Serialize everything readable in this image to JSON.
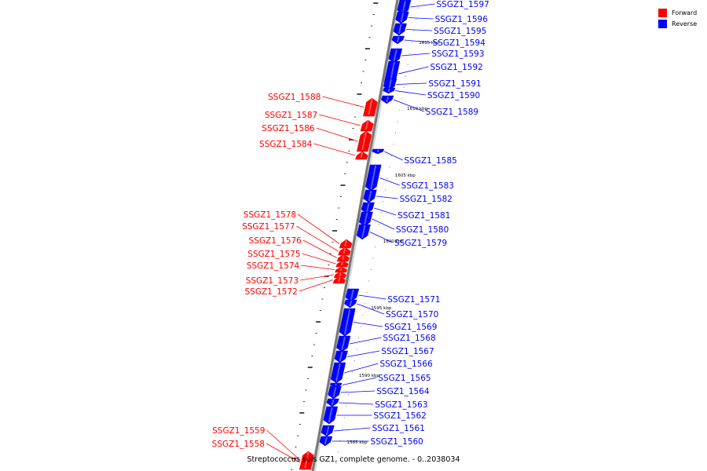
{
  "title": "Streptococcus suis GZ1, complete genome. - 0..2038034",
  "legend": {
    "forward": {
      "label": "Forward",
      "color": "#ff0000"
    },
    "reverse": {
      "label": "Reverse",
      "color": "#0000ff"
    }
  },
  "scale_labels": [
    "1615 kbp",
    "1610 kbp",
    "1605 kbp",
    "1600 kbp",
    "1595 kbp",
    "1590 kbp",
    "1585 kbp"
  ],
  "genes": [
    {
      "name": "SSGZ1_1597",
      "strand": "reverse"
    },
    {
      "name": "SSGZ1_1596",
      "strand": "reverse"
    },
    {
      "name": "SSGZ1_1595",
      "strand": "reverse"
    },
    {
      "name": "SSGZ1_1594",
      "strand": "reverse"
    },
    {
      "name": "SSGZ1_1593",
      "strand": "reverse"
    },
    {
      "name": "SSGZ1_1592",
      "strand": "reverse"
    },
    {
      "name": "SSGZ1_1591",
      "strand": "reverse"
    },
    {
      "name": "SSGZ1_1590",
      "strand": "reverse"
    },
    {
      "name": "SSGZ1_1589",
      "strand": "reverse"
    },
    {
      "name": "SSGZ1_1588",
      "strand": "forward"
    },
    {
      "name": "SSGZ1_1587",
      "strand": "forward"
    },
    {
      "name": "SSGZ1_1586",
      "strand": "forward"
    },
    {
      "name": "SSGZ1_1584",
      "strand": "forward"
    },
    {
      "name": "SSGZ1_1585",
      "strand": "reverse"
    },
    {
      "name": "SSGZ1_1583",
      "strand": "reverse"
    },
    {
      "name": "SSGZ1_1582",
      "strand": "reverse"
    },
    {
      "name": "SSGZ1_1581",
      "strand": "reverse"
    },
    {
      "name": "SSGZ1_1580",
      "strand": "reverse"
    },
    {
      "name": "SSGZ1_1579",
      "strand": "reverse"
    },
    {
      "name": "SSGZ1_1578",
      "strand": "forward"
    },
    {
      "name": "SSGZ1_1577",
      "strand": "forward"
    },
    {
      "name": "SSGZ1_1576",
      "strand": "forward"
    },
    {
      "name": "SSGZ1_1575",
      "strand": "forward"
    },
    {
      "name": "SSGZ1_1574",
      "strand": "forward"
    },
    {
      "name": "SSGZ1_1573",
      "strand": "forward"
    },
    {
      "name": "SSGZ1_1572",
      "strand": "forward"
    },
    {
      "name": "SSGZ1_1571",
      "strand": "reverse"
    },
    {
      "name": "SSGZ1_1570",
      "strand": "reverse"
    },
    {
      "name": "SSGZ1_1569",
      "strand": "reverse"
    },
    {
      "name": "SSGZ1_1568",
      "strand": "reverse"
    },
    {
      "name": "SSGZ1_1567",
      "strand": "reverse"
    },
    {
      "name": "SSGZ1_1566",
      "strand": "reverse"
    },
    {
      "name": "SSGZ1_1565",
      "strand": "reverse"
    },
    {
      "name": "SSGZ1_1564",
      "strand": "reverse"
    },
    {
      "name": "SSGZ1_1563",
      "strand": "reverse"
    },
    {
      "name": "SSGZ1_1562",
      "strand": "reverse"
    },
    {
      "name": "SSGZ1_1561",
      "strand": "reverse"
    },
    {
      "name": "SSGZ1_1560",
      "strand": "reverse"
    },
    {
      "name": "SSGZ1_1559",
      "strand": "forward"
    },
    {
      "name": "SSGZ1_1558",
      "strand": "forward"
    }
  ]
}
